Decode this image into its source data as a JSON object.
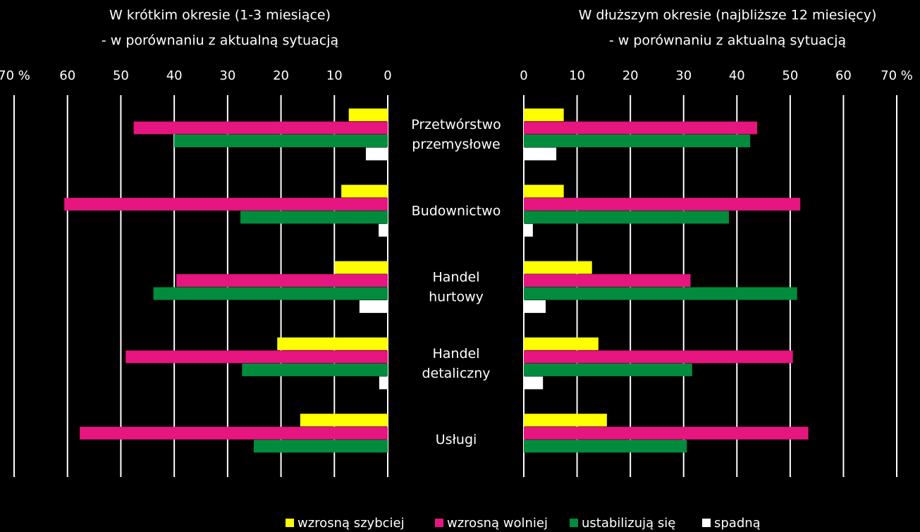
{
  "chart_data": [
    {
      "type": "bar",
      "orientation": "horizontal",
      "direction": "reversed",
      "title": [
        "W krótkim okresie (1-3 miesiące)",
        "- w porównaniu z aktualną sytuacją"
      ],
      "categories": [
        "Przetwórstwo\nprzemysłowe",
        "Budownictwo",
        "Handel\nhurtowy",
        "Handel\ndetaliczny",
        "Usługi"
      ],
      "xlim": [
        0,
        70
      ],
      "xticks": [
        0,
        10,
        20,
        30,
        40,
        50,
        60,
        {
          "value": 70,
          "label": "70 %"
        }
      ],
      "grid": true,
      "legend": "bottom",
      "series": [
        {
          "name": "wzrosną szybciej",
          "color": "#ffff00",
          "values": [
            7.3,
            8.7,
            9.9,
            20.7,
            16.4
          ]
        },
        {
          "name": "wzrosną wolniej",
          "color": "#e6157f",
          "values": [
            47.6,
            60.6,
            39.6,
            49.1,
            57.7
          ]
        },
        {
          "name": "ustabilizują się",
          "color": "#008c3c",
          "values": [
            40.0,
            27.6,
            43.9,
            27.3,
            25.1
          ]
        },
        {
          "name": "spadną",
          "color": "#ffffff",
          "values": [
            4.1,
            1.7,
            5.3,
            1.6,
            0
          ]
        }
      ]
    },
    {
      "type": "bar",
      "orientation": "horizontal",
      "title": [
        "W dłuższym okresie (najbliższe 12 miesięcy)",
        "- w porównaniu z aktualną sytuacją"
      ],
      "xlim": [
        0,
        70
      ],
      "xticks": [
        0,
        10,
        20,
        30,
        40,
        50,
        60,
        {
          "value": 70,
          "label": "70 %"
        }
      ],
      "grid": true,
      "series": [
        {
          "color": "#ffff00",
          "values": [
            7.5,
            7.5,
            12.8,
            14.0,
            15.6
          ]
        },
        {
          "color": "#e6157f",
          "values": [
            43.8,
            51.9,
            31.3,
            50.5,
            53.4
          ]
        },
        {
          "color": "#008c3c",
          "values": [
            42.5,
            38.5,
            51.3,
            31.6,
            30.6
          ]
        },
        {
          "color": "#ffffff",
          "values": [
            6.1,
            1.7,
            4.1,
            3.6,
            0
          ]
        }
      ]
    }
  ]
}
